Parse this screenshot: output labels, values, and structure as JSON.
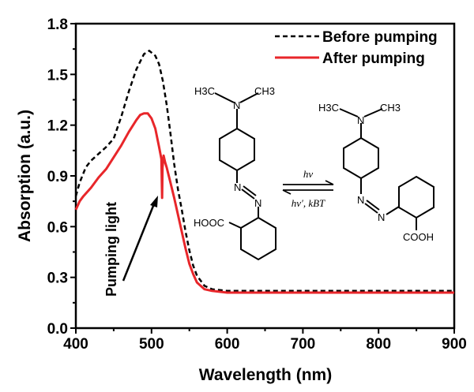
{
  "chart_data": {
    "type": "line",
    "xlabel": "Wavelength (nm)",
    "ylabel": "Absorption (a.u.)",
    "xlim": [
      400,
      900
    ],
    "ylim": [
      0,
      1.8
    ],
    "xticks": [
      400,
      500,
      600,
      700,
      800,
      900
    ],
    "yticks": [
      0.0,
      0.3,
      0.6,
      0.9,
      1.2,
      1.5,
      1.8
    ],
    "ytick_labels": [
      "0.0",
      "0.3",
      "0.6",
      "0.9",
      "1.2",
      "1.5",
      "1.8"
    ],
    "legend_position": "top-right",
    "series": [
      {
        "name": "Before pumping",
        "color": "#000000",
        "style": "dashed",
        "x": [
          400,
          405,
          413,
          420,
          430,
          440,
          450,
          460,
          470,
          480,
          490,
          497,
          505,
          510,
          515,
          520,
          525,
          530,
          535,
          540,
          545,
          550,
          555,
          560,
          570,
          580,
          600,
          650,
          700,
          750,
          800,
          850,
          900
        ],
        "y": [
          0.78,
          0.86,
          0.95,
          0.99,
          1.03,
          1.07,
          1.12,
          1.25,
          1.4,
          1.53,
          1.62,
          1.64,
          1.61,
          1.56,
          1.46,
          1.32,
          1.15,
          0.97,
          0.82,
          0.7,
          0.57,
          0.46,
          0.37,
          0.31,
          0.25,
          0.23,
          0.22,
          0.22,
          0.22,
          0.22,
          0.22,
          0.22,
          0.22
        ]
      },
      {
        "name": "After pumping",
        "color": "#e8262a",
        "style": "solid",
        "x": [
          400,
          405,
          410,
          420,
          430,
          440,
          450,
          460,
          470,
          480,
          485,
          490,
          495,
          500,
          505,
          510,
          513,
          514,
          514.5,
          516,
          518,
          520,
          525,
          530,
          535,
          540,
          545,
          550,
          555,
          560,
          570,
          580,
          600,
          650,
          700,
          750,
          800,
          850,
          900
        ],
        "y": [
          0.7,
          0.75,
          0.78,
          0.83,
          0.89,
          0.94,
          1.01,
          1.08,
          1.16,
          1.23,
          1.26,
          1.27,
          1.27,
          1.24,
          1.18,
          1.07,
          1.0,
          0.77,
          0.95,
          1.02,
          0.98,
          0.95,
          0.86,
          0.77,
          0.67,
          0.57,
          0.47,
          0.38,
          0.32,
          0.27,
          0.23,
          0.22,
          0.21,
          0.21,
          0.21,
          0.21,
          0.21,
          0.21,
          0.21
        ]
      }
    ],
    "annotations": {
      "pumping": "Pumping light"
    }
  },
  "scheme": {
    "left": {
      "h3c": "H3C",
      "ch3": "CH3",
      "n1": "N",
      "n2": "N",
      "n3": "N",
      "acid": "HOOC"
    },
    "right": {
      "h3c": "H3C",
      "ch3": "CH3",
      "n1": "N",
      "n2": "N",
      "n3": "N",
      "acid": "COOH"
    },
    "forward": "hν",
    "reverse": "hν′, kBT"
  }
}
